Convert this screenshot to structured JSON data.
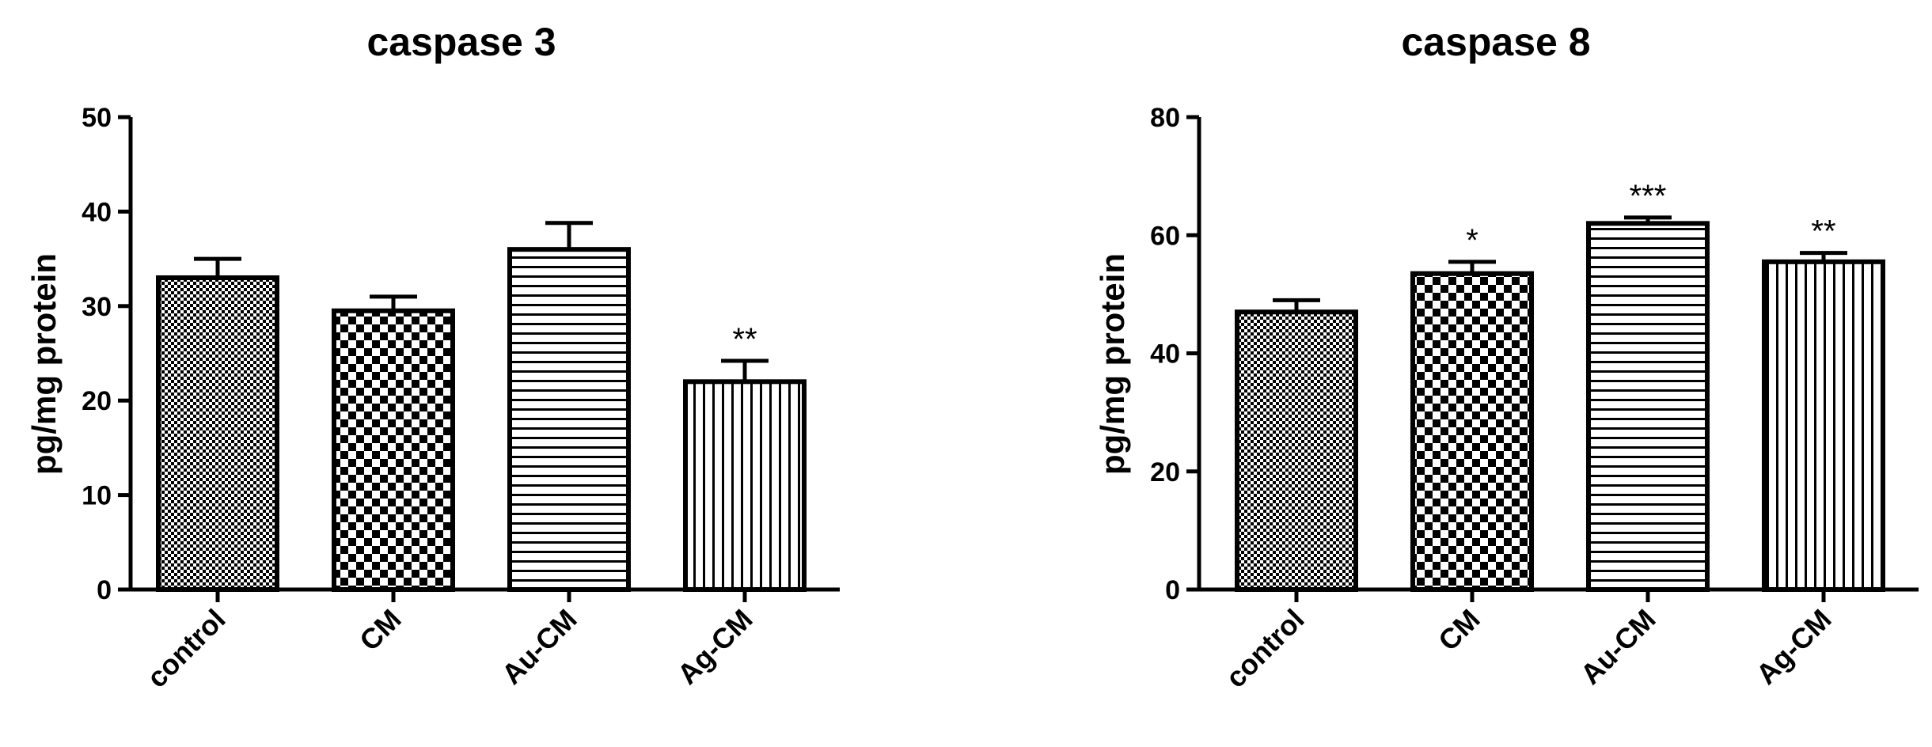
{
  "chart_data": [
    {
      "type": "bar",
      "title": "caspase 3",
      "ylabel": "pg/mg protein",
      "xlabel": "",
      "ylim": [
        0,
        50
      ],
      "yticks": [
        0,
        10,
        20,
        30,
        40,
        50
      ],
      "categories": [
        "control",
        "CM",
        "Au-CM",
        "Ag-CM"
      ],
      "values": [
        33,
        29.5,
        36,
        22
      ],
      "errors": [
        2,
        1.5,
        2.8,
        2.2
      ],
      "significance": [
        "",
        "",
        "",
        "**"
      ],
      "patterns": [
        "dense-checker",
        "checker",
        "horizontal-lines",
        "vertical-lines"
      ],
      "grid": false
    },
    {
      "type": "bar",
      "title": "caspase 8",
      "ylabel": "pg/mg protein",
      "xlabel": "",
      "ylim": [
        0,
        80
      ],
      "yticks": [
        0,
        20,
        40,
        60,
        80
      ],
      "categories": [
        "control",
        "CM",
        "Au-CM",
        "Ag-CM"
      ],
      "values": [
        47,
        53.5,
        62,
        55.5
      ],
      "errors": [
        2,
        2,
        1,
        1.5
      ],
      "significance": [
        "",
        "*",
        "***",
        "**"
      ],
      "patterns": [
        "dense-checker",
        "checker",
        "horizontal-lines",
        "vertical-lines"
      ],
      "grid": false
    }
  ],
  "colors": {
    "ink": "#000000",
    "background": "#ffffff"
  }
}
